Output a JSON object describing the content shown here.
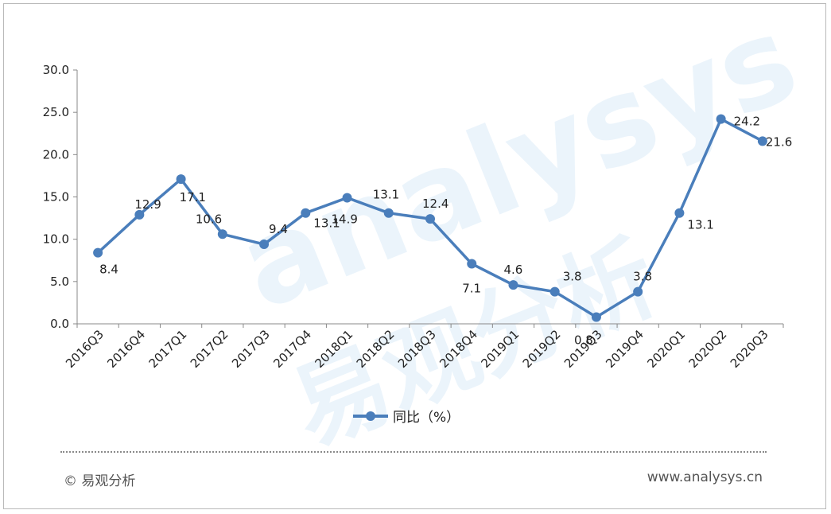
{
  "chart_data": {
    "type": "line",
    "categories": [
      "2016Q3",
      "2016Q4",
      "2017Q1",
      "2017Q2",
      "2017Q3",
      "2017Q4",
      "2018Q1",
      "2018Q2",
      "2018Q3",
      "2018Q4",
      "2019Q1",
      "2019Q2",
      "2019Q3",
      "2019Q4",
      "2020Q1",
      "2020Q2",
      "2020Q3"
    ],
    "series": [
      {
        "name": "同比（%）",
        "values": [
          8.4,
          12.9,
          17.1,
          10.6,
          9.4,
          13.1,
          14.9,
          13.1,
          12.4,
          7.1,
          4.6,
          3.8,
          0.8,
          3.8,
          13.1,
          24.2,
          21.6
        ],
        "color": "#4a7ebb"
      }
    ],
    "ylim": [
      0,
      30
    ],
    "yticks": [
      "0.0",
      "5.0",
      "10.0",
      "15.0",
      "20.0",
      "25.0",
      "30.0"
    ],
    "grid": false,
    "legend_position": "bottom",
    "title": "",
    "xlabel": "",
    "ylabel": ""
  },
  "footer": {
    "copyright": "© 易观分析",
    "website": "www.analysys.cn"
  },
  "watermark": {
    "latin": "analysys",
    "cjk": "易观分析"
  }
}
